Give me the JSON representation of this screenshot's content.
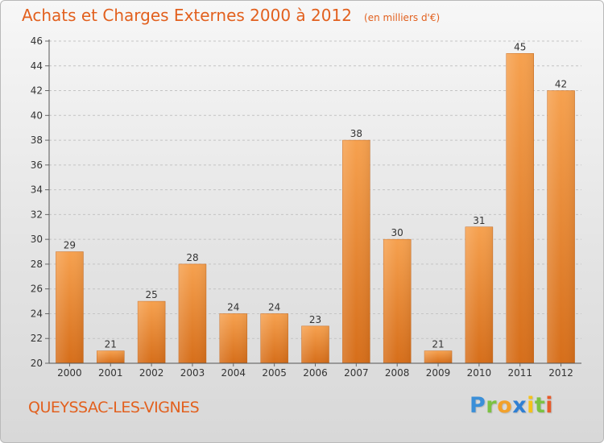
{
  "header": {
    "title": "Achats et Charges Externes 2000 à 2012",
    "subtitle": "(en milliers d'€)"
  },
  "footer": {
    "commune": "QUEYSSAC-LES-VIGNES",
    "brand": "Proxiti"
  },
  "colors": {
    "title": "#e2601e",
    "bar_top": "#f6a14f",
    "bar_bottom": "#d66e1a"
  },
  "chart_data": {
    "type": "bar",
    "title": "Achats et Charges Externes 2000 à 2012",
    "subtitle": "(en milliers d'€)",
    "categories": [
      "2000",
      "2001",
      "2002",
      "2003",
      "2004",
      "2005",
      "2006",
      "2007",
      "2008",
      "2009",
      "2010",
      "2011",
      "2012"
    ],
    "values": [
      29,
      21,
      25,
      28,
      24,
      24,
      23,
      38,
      30,
      21,
      31,
      45,
      42
    ],
    "ylim": [
      20,
      46
    ],
    "yticks": [
      20,
      22,
      24,
      26,
      28,
      30,
      32,
      34,
      36,
      38,
      40,
      42,
      44,
      46
    ],
    "grid": true,
    "legend": "none"
  }
}
